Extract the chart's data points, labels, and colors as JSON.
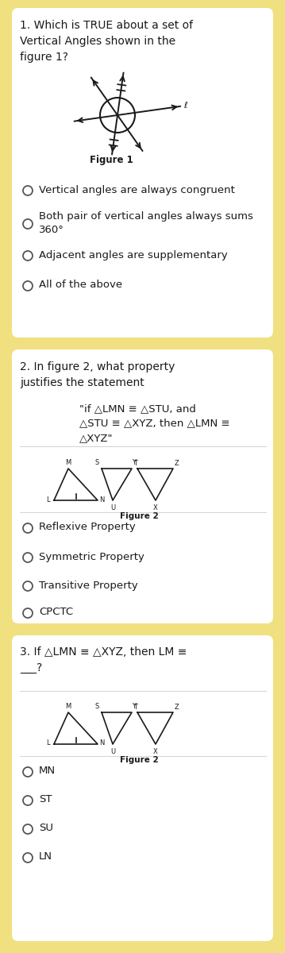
{
  "bg_outer": "#f0e080",
  "bg_card": "#ffffff",
  "text_color": "#1a1a1a",
  "q1_title": "1. Which is TRUE about a set of\nVertical Angles shown in the\nfigure 1?",
  "q1_options": [
    "Vertical angles are always congruent",
    "Both pair of vertical angles always sums\n360°",
    "Adjacent angles are supplementary",
    "All of the above"
  ],
  "q1_figure_label": "Figure 1",
  "q2_title": "2. In figure 2, what property\njustifies the statement",
  "q2_statement": "\"if △LMN ≡ △STU, and\n△STU ≡ △XYZ, then △LMN ≡\n△XYZ\"",
  "q2_figure_label": "Figure 2",
  "q2_options": [
    "Reflexive Property",
    "Symmetric Property",
    "Transitive Property",
    "CPCTC"
  ],
  "q3_title": "3. If △LMN ≡ △XYZ, then LM ≡\n___?",
  "q3_figure_label": "Figure 2",
  "q3_options": [
    "MN",
    "ST",
    "SU",
    "LN"
  ],
  "font_q": 10.0,
  "font_opt": 9.5,
  "font_stmt": 9.5
}
